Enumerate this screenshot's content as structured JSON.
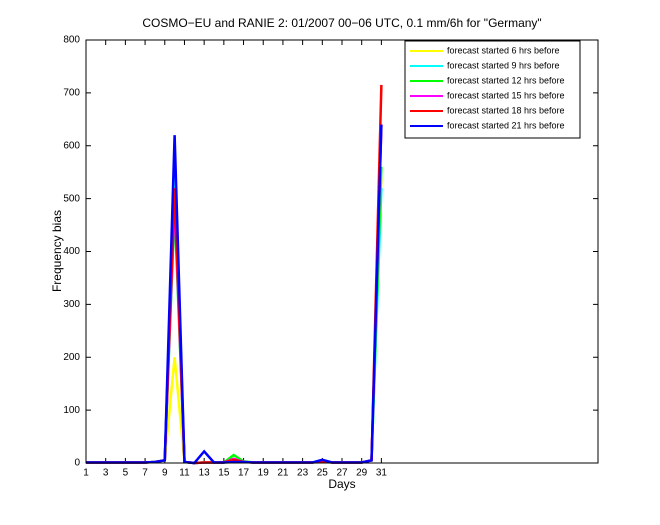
{
  "chart_data": {
    "type": "line",
    "title": "COSMO−EU and RANIE 2: 01/2007 00−06 UTC, 0.1 mm/6h for \"Germany\"",
    "x_label": "Days",
    "y_label": "Frequency bias",
    "x": [
      1,
      2,
      3,
      4,
      5,
      6,
      7,
      8,
      9,
      10,
      11,
      12,
      13,
      14,
      15,
      16,
      17,
      18,
      19,
      20,
      21,
      22,
      23,
      24,
      25,
      26,
      27,
      28,
      29,
      30,
      31
    ],
    "xlim": [
      1,
      53
    ],
    "xticks": [
      1,
      3,
      5,
      7,
      9,
      11,
      13,
      15,
      17,
      19,
      21,
      23,
      25,
      27,
      29,
      31
    ],
    "ylim": [
      0,
      800
    ],
    "yticks": [
      0,
      100,
      200,
      300,
      400,
      500,
      600,
      700,
      800
    ],
    "legend_position": "upper right",
    "series": [
      {
        "name": "forecast started 6 hrs before",
        "color": "#ffff00",
        "values": [
          1,
          1,
          1,
          1,
          1,
          1,
          1,
          2,
          5,
          200,
          2,
          0,
          1,
          1,
          1,
          3,
          2,
          1,
          1,
          1,
          1,
          1,
          1,
          1,
          2,
          1,
          1,
          1,
          1,
          5,
          540
        ]
      },
      {
        "name": "forecast started 9 hrs before",
        "color": "#00ffff",
        "values": [
          1,
          1,
          1,
          1,
          1,
          1,
          1,
          2,
          5,
          560,
          2,
          0,
          1,
          1,
          1,
          5,
          2,
          1,
          1,
          1,
          1,
          1,
          1,
          1,
          3,
          1,
          1,
          1,
          1,
          5,
          520
        ]
      },
      {
        "name": "forecast started 12 hrs before",
        "color": "#00ff00",
        "values": [
          1,
          1,
          1,
          1,
          1,
          1,
          1,
          2,
          5,
          480,
          2,
          0,
          1,
          1,
          1,
          15,
          3,
          1,
          1,
          1,
          1,
          1,
          1,
          1,
          3,
          1,
          1,
          1,
          1,
          5,
          560
        ]
      },
      {
        "name": "forecast started 15 hrs before",
        "color": "#ff00ff",
        "values": [
          1,
          1,
          1,
          1,
          1,
          1,
          1,
          2,
          5,
          500,
          2,
          0,
          1,
          1,
          1,
          8,
          2,
          1,
          1,
          1,
          1,
          1,
          1,
          1,
          3,
          1,
          1,
          1,
          1,
          5,
          640
        ]
      },
      {
        "name": "forecast started 18 hrs before",
        "color": "#ff0000",
        "values": [
          1,
          1,
          1,
          1,
          1,
          1,
          1,
          2,
          5,
          520,
          2,
          0,
          1,
          1,
          1,
          6,
          2,
          1,
          1,
          1,
          1,
          1,
          1,
          1,
          3,
          1,
          1,
          1,
          1,
          5,
          715
        ]
      },
      {
        "name": "forecast started 21 hrs before",
        "color": "#0000ff",
        "values": [
          1,
          1,
          1,
          1,
          1,
          1,
          1,
          2,
          5,
          620,
          2,
          0,
          22,
          1,
          1,
          2,
          2,
          1,
          1,
          1,
          1,
          1,
          1,
          1,
          6,
          1,
          1,
          1,
          1,
          5,
          640
        ]
      }
    ]
  }
}
